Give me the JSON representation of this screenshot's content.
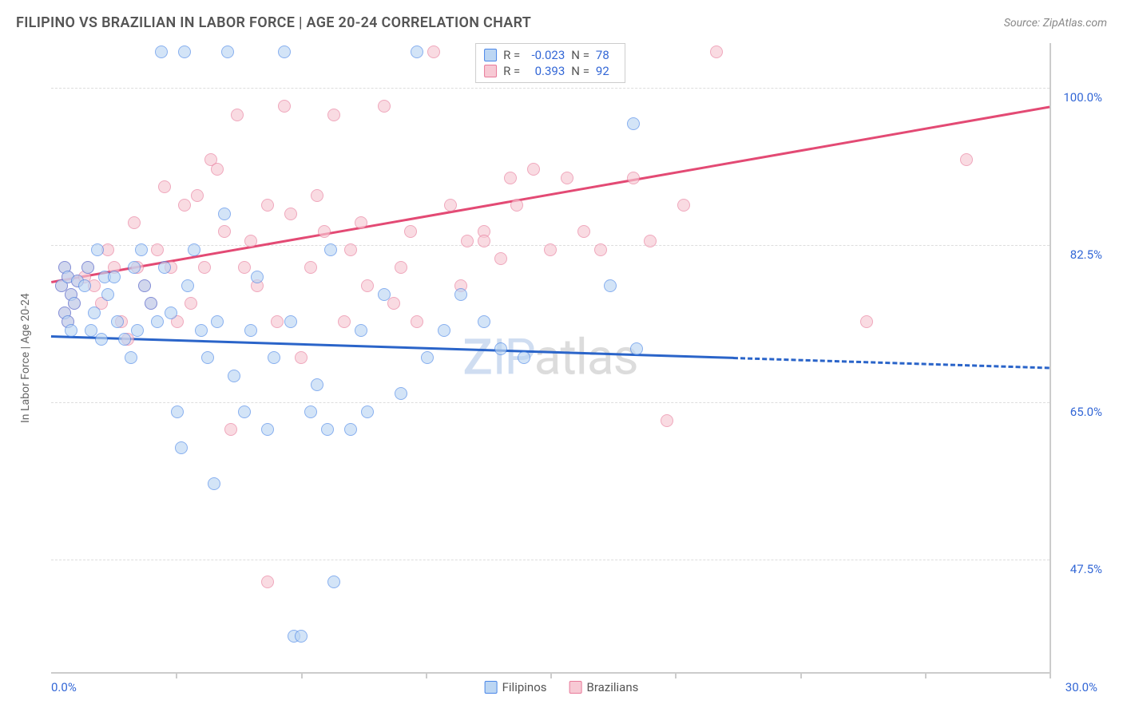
{
  "title": "FILIPINO VS BRAZILIAN IN LABOR FORCE | AGE 20-24 CORRELATION CHART",
  "source": "Source: ZipAtlas.com",
  "axis": {
    "y_title": "In Labor Force | Age 20-24",
    "x_label_start": "0.0%",
    "x_label_end": "30.0%",
    "xlim": [
      0,
      30
    ],
    "ylim": [
      35,
      105
    ],
    "y_ticks": [
      47.5,
      65.0,
      82.5,
      100.0
    ],
    "y_tick_labels": [
      "47.5%",
      "65.0%",
      "82.5%",
      "100.0%"
    ],
    "x_tick_positions": [
      3.75,
      7.5,
      11.25,
      15.0,
      18.75,
      22.5,
      26.25,
      30.0
    ]
  },
  "watermark": {
    "text1": "Z",
    "text2": "IP",
    "text3": "atlas"
  },
  "legend": {
    "series1": {
      "name": "Filipinos",
      "fill": "#bcd6f3",
      "stroke": "#4a86e8"
    },
    "series2": {
      "name": "Brazilians",
      "fill": "#f7c9d4",
      "stroke": "#e87a9a"
    }
  },
  "stats": {
    "s1": {
      "R_label": "R =",
      "R": "-0.023",
      "N_label": "N =",
      "N": "78",
      "swatch_fill": "#bcd6f3",
      "swatch_stroke": "#4a86e8"
    },
    "s2": {
      "R_label": "R =",
      "R": "0.393",
      "N_label": "N =",
      "N": "92",
      "swatch_fill": "#f7c9d4",
      "swatch_stroke": "#e87a9a"
    }
  },
  "series1": {
    "color_fill": "#bcd6f3",
    "color_stroke": "#4a86e8",
    "line_color": "#2a64c9",
    "line_solid_end_x": 20.5,
    "line_start": {
      "x": 0,
      "y": 72.5
    },
    "line_end": {
      "x": 30,
      "y": 69.0
    },
    "points": [
      [
        0.3,
        78
      ],
      [
        0.4,
        80
      ],
      [
        0.5,
        79
      ],
      [
        0.6,
        77
      ],
      [
        0.4,
        75
      ],
      [
        0.5,
        74
      ],
      [
        0.7,
        76
      ],
      [
        0.8,
        78.5
      ],
      [
        0.6,
        73
      ],
      [
        1.0,
        78
      ],
      [
        1.1,
        80
      ],
      [
        1.4,
        82
      ],
      [
        1.6,
        79
      ],
      [
        1.3,
        75
      ],
      [
        1.2,
        73
      ],
      [
        1.5,
        72
      ],
      [
        1.7,
        77
      ],
      [
        1.9,
        79
      ],
      [
        2.0,
        74
      ],
      [
        2.2,
        72
      ],
      [
        2.4,
        70
      ],
      [
        2.6,
        73
      ],
      [
        2.8,
        78
      ],
      [
        2.5,
        80
      ],
      [
        2.7,
        82
      ],
      [
        3.0,
        76
      ],
      [
        3.2,
        74
      ],
      [
        3.4,
        80
      ],
      [
        3.3,
        104
      ],
      [
        3.6,
        75
      ],
      [
        3.8,
        64
      ],
      [
        3.9,
        60
      ],
      [
        4.0,
        104
      ],
      [
        4.1,
        78
      ],
      [
        4.3,
        82
      ],
      [
        4.5,
        73
      ],
      [
        4.7,
        70
      ],
      [
        4.9,
        56
      ],
      [
        5.0,
        74
      ],
      [
        5.2,
        86
      ],
      [
        5.3,
        104
      ],
      [
        5.5,
        68
      ],
      [
        5.8,
        64
      ],
      [
        6.0,
        73
      ],
      [
        6.2,
        79
      ],
      [
        6.5,
        62
      ],
      [
        6.7,
        70
      ],
      [
        7.0,
        104
      ],
      [
        7.2,
        74
      ],
      [
        7.3,
        39
      ],
      [
        7.5,
        39
      ],
      [
        7.8,
        64
      ],
      [
        8.0,
        67
      ],
      [
        8.3,
        62
      ],
      [
        8.4,
        82
      ],
      [
        8.5,
        45
      ],
      [
        9.0,
        62
      ],
      [
        9.3,
        73
      ],
      [
        9.5,
        64
      ],
      [
        10.0,
        77
      ],
      [
        10.5,
        66
      ],
      [
        11.0,
        104
      ],
      [
        11.3,
        70
      ],
      [
        11.8,
        73
      ],
      [
        12.3,
        77
      ],
      [
        13.0,
        74
      ],
      [
        13.5,
        71
      ],
      [
        14.2,
        70
      ],
      [
        16.8,
        78
      ],
      [
        17.5,
        96
      ],
      [
        17.6,
        71
      ]
    ]
  },
  "series2": {
    "color_fill": "#f7c9d4",
    "color_stroke": "#e87a9a",
    "line_color": "#e34a74",
    "line_start": {
      "x": 0,
      "y": 78.5
    },
    "line_end": {
      "x": 30,
      "y": 98.0
    },
    "points": [
      [
        0.3,
        78
      ],
      [
        0.4,
        80
      ],
      [
        0.5,
        79
      ],
      [
        0.6,
        77
      ],
      [
        0.4,
        75
      ],
      [
        0.5,
        74
      ],
      [
        0.7,
        76
      ],
      [
        0.8,
        78.5
      ],
      [
        1.0,
        79
      ],
      [
        1.1,
        80
      ],
      [
        1.3,
        78
      ],
      [
        1.5,
        76
      ],
      [
        1.7,
        82
      ],
      [
        1.9,
        80
      ],
      [
        2.1,
        74
      ],
      [
        2.3,
        72
      ],
      [
        2.5,
        85
      ],
      [
        2.6,
        80
      ],
      [
        2.8,
        78
      ],
      [
        3.0,
        76
      ],
      [
        3.2,
        82
      ],
      [
        3.4,
        89
      ],
      [
        3.6,
        80
      ],
      [
        3.8,
        74
      ],
      [
        4.0,
        87
      ],
      [
        4.2,
        76
      ],
      [
        4.4,
        88
      ],
      [
        4.6,
        80
      ],
      [
        4.8,
        92
      ],
      [
        5.0,
        91
      ],
      [
        5.2,
        84
      ],
      [
        5.4,
        62
      ],
      [
        5.6,
        97
      ],
      [
        5.8,
        80
      ],
      [
        6.0,
        83
      ],
      [
        6.2,
        78
      ],
      [
        6.5,
        87
      ],
      [
        6.8,
        74
      ],
      [
        7.0,
        98
      ],
      [
        7.2,
        86
      ],
      [
        7.5,
        70
      ],
      [
        7.8,
        80
      ],
      [
        8.0,
        88
      ],
      [
        8.2,
        84
      ],
      [
        8.5,
        97
      ],
      [
        8.8,
        74
      ],
      [
        9.0,
        82
      ],
      [
        9.3,
        85
      ],
      [
        9.5,
        78
      ],
      [
        10.0,
        98
      ],
      [
        10.3,
        76
      ],
      [
        10.5,
        80
      ],
      [
        10.8,
        84
      ],
      [
        11.0,
        74
      ],
      [
        11.5,
        104
      ],
      [
        12.0,
        87
      ],
      [
        12.3,
        78
      ],
      [
        12.5,
        83
      ],
      [
        13.0,
        84
      ],
      [
        13.0,
        83
      ],
      [
        13.5,
        81
      ],
      [
        13.8,
        90
      ],
      [
        14.0,
        87
      ],
      [
        14.5,
        91
      ],
      [
        15.0,
        82
      ],
      [
        15.5,
        90
      ],
      [
        16.0,
        84
      ],
      [
        16.5,
        82
      ],
      [
        17.5,
        90
      ],
      [
        18.0,
        83
      ],
      [
        18.5,
        63
      ],
      [
        19.0,
        87
      ],
      [
        20.0,
        104
      ],
      [
        24.5,
        74
      ],
      [
        27.5,
        92
      ],
      [
        6.5,
        45
      ]
    ]
  },
  "chart": {
    "type": "scatter",
    "background_color": "#ffffff",
    "grid_color": "#dddddd",
    "axis_color": "#cccccc",
    "title_fontsize": 18,
    "label_fontsize": 14,
    "tick_fontsize": 15,
    "tick_color": "#3367d6",
    "point_radius": 8,
    "point_opacity": 0.65,
    "line_width": 3
  }
}
